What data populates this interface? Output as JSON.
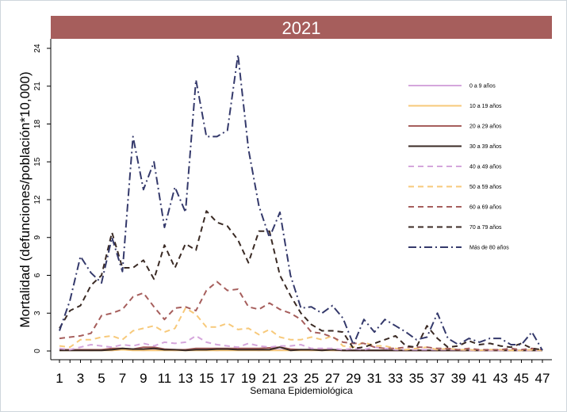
{
  "chart_data": {
    "type": "line",
    "title": "2021",
    "xlabel": "Semana Epidemiológica",
    "ylabel": "Mortalidad (defunciones/población*10,000)",
    "xlim": [
      1,
      47
    ],
    "ylim": [
      0,
      24
    ],
    "x_ticks": [
      "1",
      "3",
      "5",
      "7",
      "9",
      "11",
      "13",
      "15",
      "17",
      "19",
      "21",
      "23",
      "25",
      "27",
      "29",
      "31",
      "33",
      "35",
      "37",
      "39",
      "41",
      "43",
      "45",
      "47"
    ],
    "y_ticks": [
      "0",
      "3",
      "6",
      "9",
      "12",
      "15",
      "18",
      "21",
      "24"
    ],
    "grid": false,
    "legend_position": "top-right inside",
    "colors": {
      "title_bar": "#a65e5c",
      "title_text": "#ffffff"
    },
    "x": [
      1,
      2,
      3,
      4,
      5,
      6,
      7,
      8,
      9,
      10,
      11,
      12,
      13,
      14,
      15,
      16,
      17,
      18,
      19,
      20,
      21,
      22,
      23,
      24,
      25,
      26,
      27,
      28,
      29,
      30,
      31,
      32,
      33,
      34,
      35,
      36,
      37,
      38,
      39,
      40,
      41,
      42,
      43,
      44,
      45,
      46,
      47
    ],
    "series": [
      {
        "name": "0 a 9 años",
        "color": "#d5a6dc",
        "dash": "solid",
        "values": [
          0.1,
          0.1,
          0.1,
          0.05,
          0.1,
          0.05,
          0.1,
          0.1,
          0.05,
          0.1,
          0.1,
          0.05,
          0.1,
          0.1,
          0.1,
          0.05,
          0.1,
          0.1,
          0.1,
          0.05,
          0.1,
          0.1,
          0.05,
          0.1,
          0.05,
          0.1,
          0.05,
          0.05,
          0.05,
          0.05,
          0.05,
          0.05,
          0.05,
          0.05,
          0.05,
          0.05,
          0.05,
          0.05,
          0.05,
          0.05,
          0.05,
          0.05,
          0.05,
          0.05,
          0.05,
          0.05,
          0.05
        ]
      },
      {
        "name": "10 a 19 años",
        "color": "#f7c97a",
        "dash": "solid",
        "values": [
          0.05,
          0.05,
          0.05,
          0.05,
          0.05,
          0.05,
          0.1,
          0.05,
          0.05,
          0.05,
          0.05,
          0.05,
          0.05,
          0.05,
          0.05,
          0.05,
          0.05,
          0.05,
          0.05,
          0.05,
          0.05,
          0.05,
          0.05,
          0.05,
          0.05,
          0.05,
          0.05,
          0.05,
          0.05,
          0.05,
          0.05,
          0.05,
          0.05,
          0.05,
          0.05,
          0.05,
          0.05,
          0.05,
          0.05,
          0.05,
          0.05,
          0.05,
          0.05,
          0.05,
          0.05,
          0.05,
          0.05
        ]
      },
      {
        "name": "20 a 29 años",
        "color": "#a65e5c",
        "dash": "solid",
        "values": [
          0.1,
          0.1,
          0.1,
          0.1,
          0.1,
          0.2,
          0.2,
          0.15,
          0.3,
          0.3,
          0.15,
          0.1,
          0.1,
          0.2,
          0.2,
          0.2,
          0.2,
          0.2,
          0.2,
          0.2,
          0.25,
          0.3,
          0.15,
          0.1,
          0.1,
          0.1,
          0.1,
          0.05,
          0.05,
          0.05,
          0.05,
          0.05,
          0.05,
          0.05,
          0.05,
          0.05,
          0.05,
          0.05,
          0.05,
          0.05,
          0.05,
          0.05,
          0.05,
          0.05,
          0.05,
          0.05,
          0.05
        ]
      },
      {
        "name": "30 a 39 años",
        "color": "#3a2a24",
        "dash": "solid",
        "values": [
          0.05,
          0.05,
          0.05,
          0.05,
          0.05,
          0.1,
          0.2,
          0.15,
          0.15,
          0.2,
          0.1,
          0.1,
          0.05,
          0.1,
          0.1,
          0.15,
          0.15,
          0.1,
          0.1,
          0.1,
          0.1,
          0.3,
          0.05,
          0.1,
          0.1,
          0.05,
          0.1,
          0.05,
          0.05,
          0.05,
          0.05,
          0.05,
          0.05,
          0.05,
          0.05,
          0.05,
          0.05,
          0.05,
          0.05,
          0.05,
          0.05,
          0.05,
          0.05,
          0.05,
          0.05,
          0.05,
          0.05
        ]
      },
      {
        "name": "40 a 49 años",
        "color": "#d5a6dc",
        "dash": "dash",
        "values": [
          0.2,
          0.1,
          0.3,
          0.5,
          0.4,
          0.3,
          0.5,
          0.4,
          0.6,
          0.4,
          0.7,
          0.6,
          0.7,
          1.2,
          0.7,
          0.5,
          0.4,
          0.3,
          0.6,
          0.4,
          0.3,
          0.4,
          0.4,
          0.5,
          0.2,
          0.2,
          0.2,
          0.1,
          0.2,
          0.1,
          0.3,
          0.2,
          0.1,
          0.1,
          0.1,
          0.1,
          0.1,
          0.1,
          0.1,
          0.05,
          0.05,
          0.05,
          0.05,
          0.05,
          0.05,
          0.05,
          0.05
        ]
      },
      {
        "name": "50 a 59 años",
        "color": "#f7c97a",
        "dash": "dash",
        "values": [
          0.4,
          0.3,
          0.9,
          0.9,
          1.1,
          1.2,
          0.9,
          1.6,
          1.8,
          2.0,
          1.5,
          1.8,
          3.4,
          2.9,
          1.9,
          1.9,
          2.2,
          1.7,
          1.8,
          1.3,
          1.7,
          1.1,
          0.9,
          0.9,
          1.1,
          0.9,
          1.2,
          0.4,
          0.3,
          0.7,
          0.4,
          0.4,
          0.2,
          0.1,
          0.2,
          0.3,
          0.1,
          0.2,
          0.1,
          0.1,
          0.05,
          0.1,
          0.1,
          0.05,
          0.05,
          0.1,
          0.05
        ]
      },
      {
        "name": "60 a 69 años",
        "color": "#a65e5c",
        "dash": "dash",
        "values": [
          1.0,
          1.1,
          1.2,
          1.4,
          2.8,
          3.0,
          3.3,
          4.3,
          4.6,
          3.5,
          2.5,
          3.4,
          3.5,
          3.2,
          4.8,
          5.5,
          4.8,
          4.9,
          3.5,
          3.3,
          3.8,
          3.3,
          3.0,
          2.5,
          1.5,
          1.4,
          1.1,
          0.7,
          0.6,
          0.6,
          0.3,
          0.2,
          0.2,
          0.3,
          0.3,
          0.3,
          0.2,
          0.2,
          0.1,
          0.2,
          0.1,
          0.1,
          0.1,
          0.2,
          0.1,
          0.2,
          0.1
        ]
      },
      {
        "name": "70 a 79 años",
        "color": "#3a2a24",
        "dash": "dash",
        "values": [
          1.8,
          3.2,
          3.6,
          5.2,
          6.0,
          9.4,
          6.6,
          6.6,
          7.2,
          5.7,
          8.4,
          6.6,
          8.5,
          8.0,
          11.1,
          10.2,
          9.9,
          8.8,
          7.0,
          9.5,
          9.5,
          6.0,
          4.4,
          3.0,
          2.1,
          1.6,
          1.6,
          1.5,
          0.2,
          0.3,
          0.6,
          0.9,
          1.2,
          0.4,
          0.3,
          2.0,
          1.0,
          0.3,
          0.4,
          0.8,
          0.5,
          0.6,
          0.4,
          0.3,
          0.6,
          0.2,
          0.1
        ]
      },
      {
        "name": "Más de 80 años",
        "color": "#34396b",
        "dash": "dashdot",
        "values": [
          1.6,
          4.0,
          7.5,
          6.2,
          5.4,
          9.0,
          6.3,
          17.0,
          12.8,
          15.0,
          9.8,
          13.0,
          11.0,
          21.5,
          17.0,
          17.0,
          17.5,
          23.5,
          16.0,
          11.5,
          9.0,
          11.0,
          6.0,
          3.4,
          3.5,
          3.0,
          3.6,
          2.6,
          0.5,
          2.5,
          1.5,
          2.5,
          2.0,
          1.5,
          0.9,
          1.1,
          3.0,
          1.0,
          0.5,
          1.0,
          0.7,
          1.0,
          1.0,
          0.5,
          0.5,
          1.5,
          0.05
        ]
      }
    ]
  }
}
